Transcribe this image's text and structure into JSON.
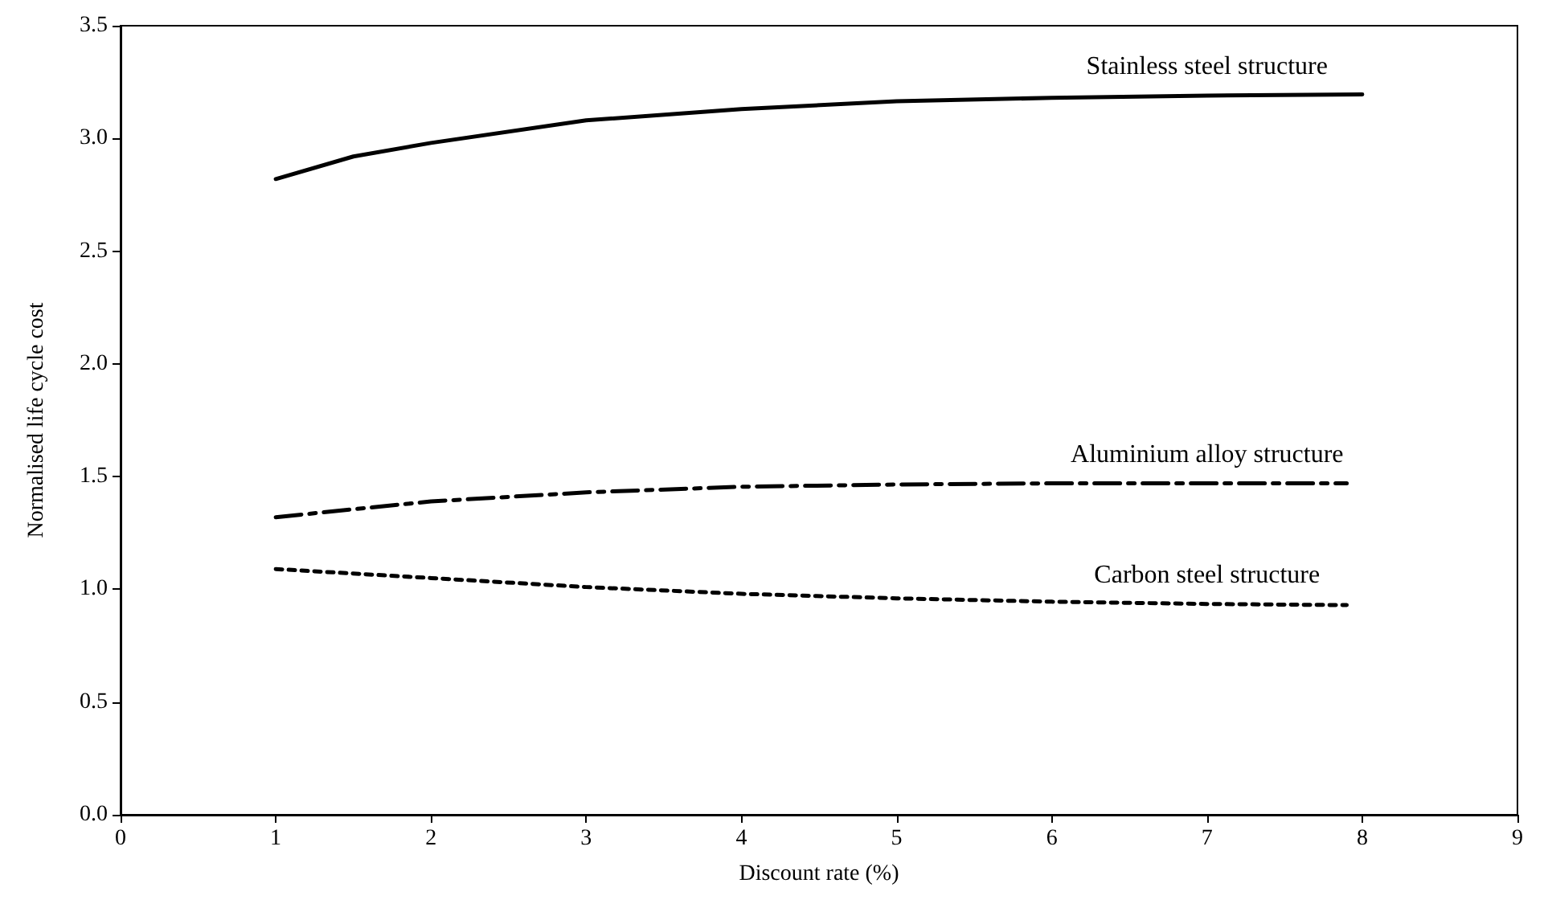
{
  "chart_data": {
    "type": "line",
    "xlabel": "Discount rate (%)",
    "ylabel": "Normalised life cycle cost",
    "x": [
      1,
      1.5,
      2,
      3,
      4,
      5,
      6,
      7,
      8
    ],
    "series": [
      {
        "name": "Stainless steel structure",
        "color": "#000000",
        "line_style": "solid",
        "values": [
          2.82,
          2.92,
          2.98,
          3.08,
          3.13,
          3.165,
          3.18,
          3.19,
          3.195
        ]
      },
      {
        "name": "Aluminium alloy structure",
        "color": "#000000",
        "line_style": "dashed",
        "x": [
          1,
          2,
          3,
          4,
          5,
          6,
          7,
          7.9
        ],
        "values": [
          1.32,
          1.39,
          1.43,
          1.455,
          1.465,
          1.47,
          1.47,
          1.47
        ]
      },
      {
        "name": "Carbon steel structure",
        "color": "#000000",
        "line_style": "dotted",
        "x": [
          1,
          2,
          3,
          4,
          5,
          6,
          7,
          7.9
        ],
        "values": [
          1.09,
          1.05,
          1.01,
          0.98,
          0.96,
          0.945,
          0.935,
          0.93
        ]
      }
    ],
    "xlim": [
      0,
      9
    ],
    "xticks": [
      0,
      1,
      2,
      3,
      4,
      5,
      6,
      7,
      8,
      9
    ],
    "ylim": [
      0,
      3.5
    ],
    "yticks": [
      {
        "value": 0,
        "label": "0.0"
      },
      {
        "value": 0.5,
        "label": "0.5"
      },
      {
        "value": 1,
        "label": "1.0"
      },
      {
        "value": 1.5,
        "label": "1.5"
      },
      {
        "value": 2,
        "label": "2.0"
      },
      {
        "value": 2.5,
        "label": "2.5"
      },
      {
        "value": 3,
        "label": "3.0"
      },
      {
        "value": 3.5,
        "label": "3.5"
      }
    ],
    "grid": false,
    "legend": false,
    "marker": "none"
  }
}
